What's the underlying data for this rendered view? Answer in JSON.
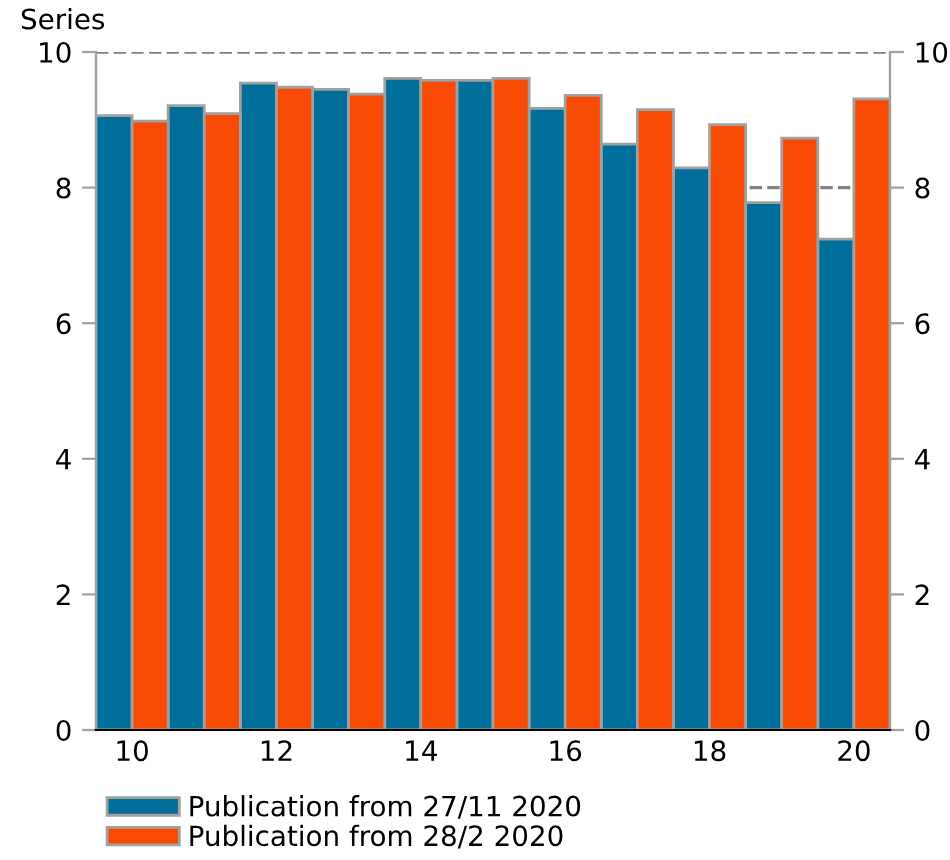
{
  "chart_data": {
    "type": "bar",
    "title": "Series",
    "categories": [
      "10",
      null,
      "12",
      null,
      "14",
      null,
      "16",
      null,
      "18",
      null,
      "20"
    ],
    "series": [
      {
        "name": "Publication from 27/11 2020",
        "color": "#006e9b",
        "values": [
          9.06,
          9.21,
          9.54,
          9.45,
          9.61,
          9.58,
          9.17,
          8.64,
          8.29,
          7.78,
          7.24
        ]
      },
      {
        "name": "Publication from 28/2 2020",
        "color": "#f74b04",
        "values": [
          8.98,
          9.09,
          9.48,
          9.38,
          9.58,
          9.61,
          9.36,
          9.15,
          8.93,
          8.73,
          9.31
        ]
      }
    ],
    "ylim": [
      0,
      10
    ],
    "yticks": [
      0,
      2,
      4,
      6,
      8,
      10
    ],
    "y2lim": [
      0,
      10
    ],
    "y2ticks": [
      0,
      2,
      4,
      6,
      8,
      10
    ],
    "grid": "y",
    "legend": "bottom"
  }
}
